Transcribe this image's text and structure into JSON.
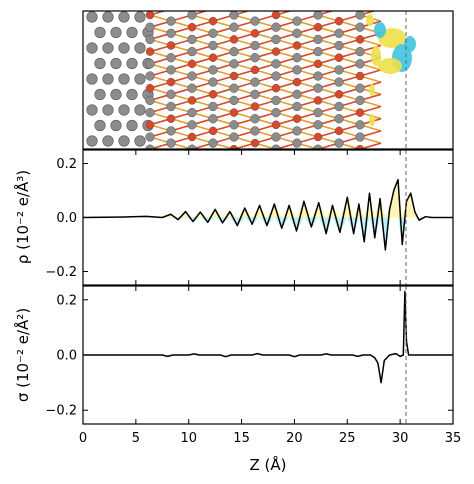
{
  "chart_data": [
    {
      "type": "image",
      "panel": "structure",
      "colors": {
        "carbon_atom": "#8c8c8c",
        "oxygen_atom": "#d9482b",
        "bond_orange": "#e0a030",
        "iso_yellow": "#ede04a",
        "iso_cyan": "#3fc4e0"
      }
    },
    {
      "type": "line",
      "panel": "rho",
      "ylabel": "ρ (10⁻² e/Å³)",
      "ylim": [
        -0.25,
        0.25
      ],
      "yticks": [
        "−0.2",
        "0.0",
        "0.2"
      ],
      "ytick_values": [
        -0.2,
        0.0,
        0.2
      ],
      "fill_positive_color": "#fff4b3",
      "fill_negative_color": "#bff0f7",
      "series": [
        {
          "x": [
            0,
            4,
            6,
            7.5,
            8.3,
            9,
            9.7,
            10.4,
            11.1,
            11.8,
            12.5,
            13.2,
            13.9,
            14.6,
            15.3,
            16.0,
            16.7,
            17.4,
            18.1,
            18.8,
            19.5,
            20.2,
            20.9,
            21.6,
            22.3,
            23.0,
            23.6,
            24.3,
            25.0,
            25.6,
            26.1,
            26.6,
            27.1,
            27.6,
            28.1,
            28.6,
            29.0,
            29.4,
            29.8,
            30.2,
            30.6,
            31.0,
            31.4,
            31.8,
            32.4,
            33,
            35
          ],
          "y": [
            0,
            0.002,
            0.004,
            0.0,
            0.012,
            -0.008,
            0.022,
            -0.015,
            0.02,
            -0.018,
            0.03,
            -0.02,
            0.022,
            -0.03,
            0.035,
            -0.025,
            0.045,
            -0.03,
            0.05,
            -0.04,
            0.045,
            -0.05,
            0.06,
            -0.035,
            0.055,
            -0.06,
            0.045,
            -0.055,
            0.075,
            -0.06,
            0.05,
            -0.09,
            0.09,
            -0.075,
            0.07,
            -0.12,
            0.03,
            0.1,
            0.14,
            -0.1,
            0.06,
            0.09,
            0.02,
            -0.01,
            0.003,
            0.0,
            0.0
          ]
        }
      ]
    },
    {
      "type": "line",
      "panel": "sigma",
      "ylabel": "σ (10⁻² e/Å²)",
      "xlabel": "Z (Å)",
      "xlim": [
        0,
        35
      ],
      "ylim": [
        -0.25,
        0.25
      ],
      "xticks": [
        "0",
        "5",
        "10",
        "15",
        "20",
        "25",
        "30",
        "35"
      ],
      "xtick_values": [
        0,
        5,
        10,
        15,
        20,
        25,
        30,
        35
      ],
      "yticks": [
        "−0.2",
        "0.0",
        "0.2"
      ],
      "ytick_values": [
        -0.2,
        0.0,
        0.2
      ],
      "reference_line_x": 30.5,
      "series": [
        {
          "x": [
            0,
            7.5,
            8.0,
            8.5,
            10.0,
            10.5,
            11.0,
            13.0,
            13.5,
            14.0,
            16.0,
            16.5,
            17.0,
            19.5,
            20.0,
            20.5,
            22.5,
            23.0,
            23.5,
            25.5,
            26.0,
            26.5,
            27.2,
            27.6,
            27.9,
            28.2,
            28.5,
            29.0,
            29.6,
            30.0,
            30.3,
            30.45,
            30.6,
            30.8,
            31.2,
            32,
            35
          ],
          "y": [
            0,
            0,
            -0.005,
            0,
            0,
            0.004,
            0,
            0,
            -0.006,
            0,
            0,
            0.005,
            0,
            0,
            -0.006,
            0,
            0,
            0.004,
            0,
            0,
            -0.005,
            0,
            0,
            -0.01,
            -0.03,
            -0.1,
            -0.02,
            0.0,
            0.005,
            -0.005,
            0.0,
            0.23,
            0.05,
            0.0,
            0.0,
            0.0,
            0.0
          ]
        }
      ]
    }
  ]
}
